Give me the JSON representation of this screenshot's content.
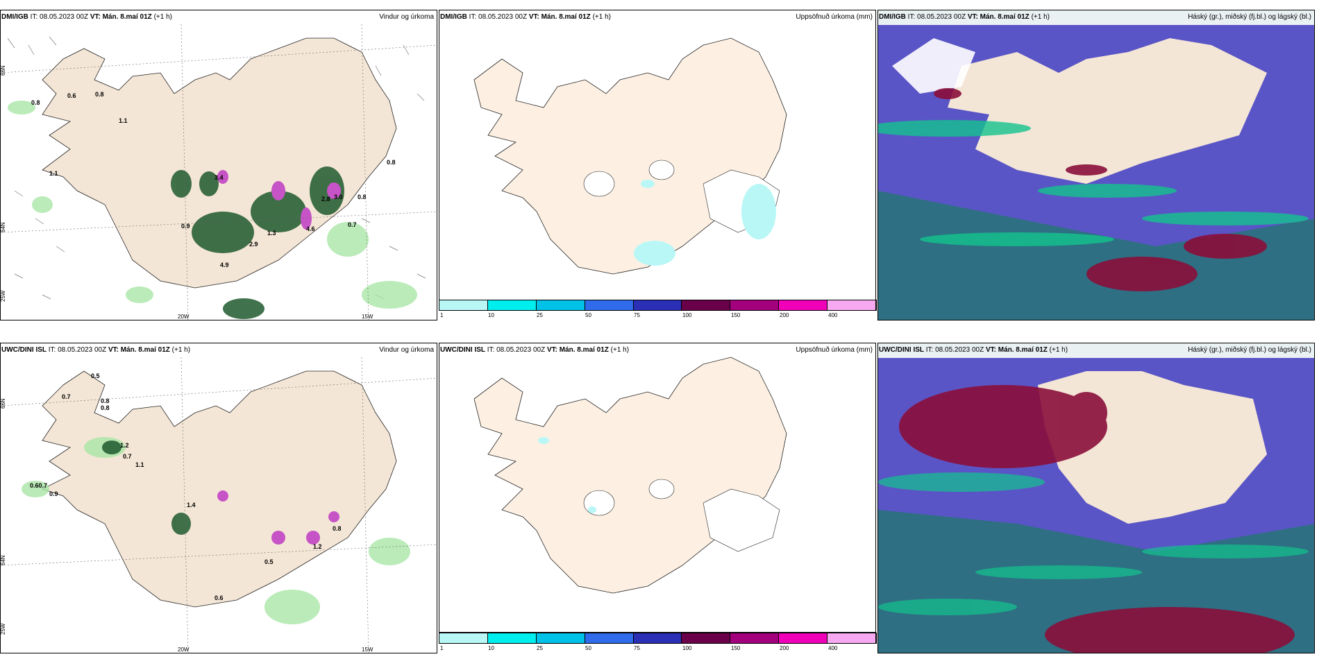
{
  "rows": [
    {
      "model": "DMI/IGB",
      "it": "IT: 08.05.2023 00Z",
      "vt": "VT: Mán. 8.maí 01Z",
      "lead": "(+1 h)"
    },
    {
      "model": "UWC/DINI ISL",
      "it": "IT: 08.05.2023 00Z",
      "vt": "VT: Mán. 8.maí 01Z",
      "lead": "(+1 h)"
    }
  ],
  "panel_titles": {
    "wind": "Vindur og úrkoma",
    "accum": "Uppsöfnuð úrkoma (mm)",
    "cloud": "Háský (gr.), miðský (fj.bl.) og lágský (bl.)"
  },
  "grid_labels": {
    "lat66": "66N",
    "lat64": "64N",
    "lon20": "20W",
    "lon15": "15W",
    "lon25": "25W"
  },
  "wind_labels_top": [
    "0.6",
    "0.8",
    "0.8",
    "1.1",
    "1.1",
    "0.9",
    "3.4",
    "2.8",
    "3.0",
    "0.8",
    "0.8",
    "4.6",
    "1.3",
    "2.9",
    "0.7",
    "4.9"
  ],
  "wind_labels_bottom": [
    "0.5",
    "0.7",
    "0.8",
    "0.8",
    "1.2",
    "0.7",
    "1.1",
    "0.60.7",
    "0.9",
    "1.4",
    "0.5",
    "0.6",
    "0.8",
    "1.2"
  ],
  "colorbar": {
    "colors": [
      "#b9f7f7",
      "#00eeee",
      "#00c2e8",
      "#2f6bea",
      "#2a2fb5",
      "#6a0049",
      "#a2007d",
      "#f000b8",
      "#f6a9f0"
    ],
    "labels": [
      "1",
      "10",
      "25",
      "50",
      "75",
      "100",
      "150",
      "200",
      "400"
    ]
  },
  "colors": {
    "land": "#f4e6d6",
    "land_accum": "#fdf0e3",
    "cloud_sea": "#2e6f83",
    "cloud_mid": "#5a55c6",
    "cloud_low": "#13c38d",
    "cloud_high": "#8a0e3a"
  }
}
